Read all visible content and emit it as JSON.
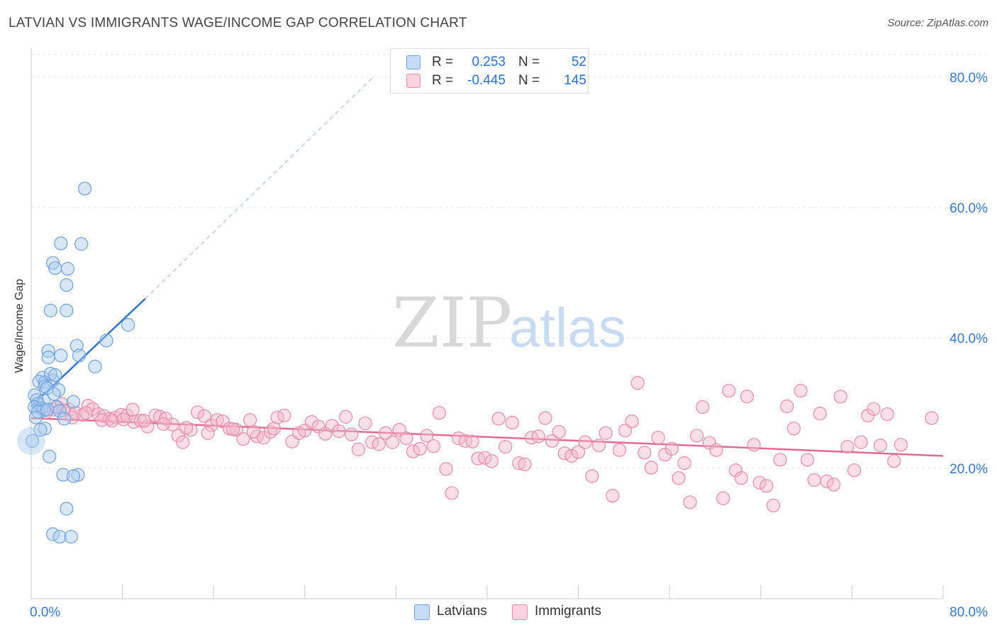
{
  "header": {
    "title": "LATVIAN VS IMMIGRANTS WAGE/INCOME GAP CORRELATION CHART",
    "source": "Source: ZipAtlas.com"
  },
  "watermark": {
    "zip": "ZIP",
    "atlas": "atlas"
  },
  "legend_top": {
    "rows": [
      {
        "r_label": "R =",
        "r_value": "0.253",
        "n_label": "N =",
        "n_value": "52",
        "color": "#a9c9f0"
      },
      {
        "r_label": "R =",
        "r_value": "-0.445",
        "n_label": "N =",
        "n_value": "145",
        "color": "#f5b8cb"
      }
    ]
  },
  "legend_bottom": {
    "items": [
      {
        "label": "Latvians",
        "color": "#a9c9f0"
      },
      {
        "label": "Immigrants",
        "color": "#f5b8cb"
      }
    ]
  },
  "chart_data": {
    "type": "scatter",
    "title": "LATVIAN VS IMMIGRANTS WAGE/INCOME GAP CORRELATION CHART",
    "xlabel": "",
    "ylabel": "Wage/Income Gap",
    "xlim": [
      0,
      80
    ],
    "ylim": [
      0,
      84
    ],
    "x_tick_labels": [
      "0.0%",
      "80.0%"
    ],
    "y_tick_values": [
      20,
      40,
      60,
      80
    ],
    "y_tick_labels": [
      "20.0%",
      "40.0%",
      "60.0%",
      "80.0%"
    ],
    "grid": true,
    "legend_position": "top-center",
    "colors": {
      "latvians_fill": "#a9c9f0",
      "latvians_stroke": "#6f9fdc",
      "latvians_line": "#2e75d4",
      "immigrants_fill": "#f5b8cb",
      "immigrants_stroke": "#e88aa8",
      "immigrants_line": "#e36a93",
      "axis_text": "#3a78c9"
    },
    "series": [
      {
        "name": "Latvians",
        "trend": {
          "x1": 0,
          "y1": 29.5,
          "x2": 10,
          "y2": 46,
          "dashed_to_x": 30,
          "dashed_to_y": 80
        },
        "points": [
          [
            4.7,
            62.9
          ],
          [
            2.6,
            54.5
          ],
          [
            4.4,
            54.4
          ],
          [
            1.9,
            51.5
          ],
          [
            2.1,
            50.7
          ],
          [
            3.2,
            50.6
          ],
          [
            3.1,
            48.1
          ],
          [
            1.7,
            44.2
          ],
          [
            3.1,
            44.2
          ],
          [
            8.5,
            42.0
          ],
          [
            6.6,
            39.6
          ],
          [
            4.0,
            38.8
          ],
          [
            1.5,
            38.0
          ],
          [
            1.5,
            37.0
          ],
          [
            2.6,
            37.3
          ],
          [
            4.2,
            37.3
          ],
          [
            5.6,
            35.6
          ],
          [
            1.0,
            33.9
          ],
          [
            0.7,
            33.3
          ],
          [
            1.2,
            33.2
          ],
          [
            1.9,
            33.5
          ],
          [
            1.7,
            34.5
          ],
          [
            2.1,
            34.3
          ],
          [
            1.2,
            32.6
          ],
          [
            1.4,
            32.3
          ],
          [
            2.4,
            32.0
          ],
          [
            0.3,
            31.2
          ],
          [
            0.5,
            30.5
          ],
          [
            1.1,
            30.4
          ],
          [
            0.6,
            29.9
          ],
          [
            0.3,
            29.4
          ],
          [
            0.9,
            29.2
          ],
          [
            1.1,
            28.9
          ],
          [
            0.6,
            28.7
          ],
          [
            2.2,
            29.4
          ],
          [
            3.7,
            30.2
          ],
          [
            2.5,
            28.8
          ],
          [
            2.9,
            27.6
          ],
          [
            1.2,
            26.1
          ],
          [
            0.8,
            25.9
          ],
          [
            0.1,
            24.2
          ],
          [
            1.6,
            21.8
          ],
          [
            2.8,
            19.0
          ],
          [
            4.1,
            19.0
          ],
          [
            3.7,
            18.8
          ],
          [
            3.1,
            13.8
          ],
          [
            1.9,
            9.9
          ],
          [
            2.5,
            9.5
          ],
          [
            3.5,
            9.5
          ],
          [
            0.4,
            27.8
          ],
          [
            1.4,
            29.0
          ],
          [
            2.0,
            31.4
          ]
        ]
      },
      {
        "name": "Immigrants",
        "trend": {
          "x1": 0,
          "y1": 27.7,
          "x2": 80,
          "y2": 21.9
        },
        "points": [
          [
            2.0,
            29.0
          ],
          [
            2.3,
            29.4
          ],
          [
            2.7,
            29.9
          ],
          [
            3.3,
            29.0
          ],
          [
            3.9,
            28.5
          ],
          [
            4.5,
            28.2
          ],
          [
            5.0,
            29.6
          ],
          [
            5.4,
            29.1
          ],
          [
            5.9,
            28.3
          ],
          [
            6.4,
            28.0
          ],
          [
            6.9,
            27.6
          ],
          [
            7.4,
            27.8
          ],
          [
            7.9,
            28.2
          ],
          [
            8.4,
            28.1
          ],
          [
            8.9,
            29.0
          ],
          [
            9.0,
            27.1
          ],
          [
            9.6,
            27.3
          ],
          [
            10.2,
            26.4
          ],
          [
            10.9,
            28.1
          ],
          [
            11.3,
            27.9
          ],
          [
            11.8,
            27.6
          ],
          [
            12.4,
            26.7
          ],
          [
            12.9,
            25.0
          ],
          [
            13.3,
            24.0
          ],
          [
            14.0,
            25.9
          ],
          [
            14.6,
            28.6
          ],
          [
            15.2,
            28.0
          ],
          [
            15.8,
            26.6
          ],
          [
            16.3,
            27.4
          ],
          [
            16.8,
            27.2
          ],
          [
            17.4,
            26.1
          ],
          [
            18.0,
            25.9
          ],
          [
            18.6,
            24.5
          ],
          [
            19.2,
            27.4
          ],
          [
            19.8,
            24.9
          ],
          [
            20.4,
            24.7
          ],
          [
            21.0,
            25.6
          ],
          [
            21.6,
            27.8
          ],
          [
            22.2,
            28.1
          ],
          [
            22.9,
            24.1
          ],
          [
            23.5,
            25.4
          ],
          [
            24.0,
            25.8
          ],
          [
            24.6,
            27.1
          ],
          [
            25.2,
            26.4
          ],
          [
            25.8,
            25.3
          ],
          [
            26.4,
            26.5
          ],
          [
            27.0,
            25.7
          ],
          [
            27.6,
            27.9
          ],
          [
            28.1,
            25.2
          ],
          [
            28.7,
            22.9
          ],
          [
            29.3,
            26.9
          ],
          [
            29.9,
            24.0
          ],
          [
            30.5,
            23.7
          ],
          [
            31.1,
            25.4
          ],
          [
            31.7,
            24.0
          ],
          [
            32.3,
            25.9
          ],
          [
            32.9,
            24.6
          ],
          [
            33.5,
            22.6
          ],
          [
            34.1,
            23.0
          ],
          [
            34.7,
            25.0
          ],
          [
            35.3,
            23.4
          ],
          [
            35.8,
            28.5
          ],
          [
            36.4,
            19.9
          ],
          [
            36.9,
            16.2
          ],
          [
            37.5,
            24.6
          ],
          [
            38.1,
            24.2
          ],
          [
            38.7,
            24.1
          ],
          [
            39.2,
            21.5
          ],
          [
            39.8,
            21.6
          ],
          [
            40.4,
            21.1
          ],
          [
            41.0,
            27.6
          ],
          [
            41.6,
            23.3
          ],
          [
            42.2,
            27.0
          ],
          [
            42.8,
            20.8
          ],
          [
            43.3,
            20.6
          ],
          [
            43.9,
            24.7
          ],
          [
            44.5,
            24.9
          ],
          [
            45.1,
            27.7
          ],
          [
            45.7,
            24.2
          ],
          [
            46.3,
            25.6
          ],
          [
            46.8,
            22.3
          ],
          [
            47.4,
            21.9
          ],
          [
            48.0,
            22.5
          ],
          [
            48.6,
            24.0
          ],
          [
            49.2,
            18.8
          ],
          [
            49.8,
            23.5
          ],
          [
            50.4,
            25.4
          ],
          [
            51.0,
            15.8
          ],
          [
            51.6,
            22.8
          ],
          [
            52.1,
            25.8
          ],
          [
            52.7,
            27.2
          ],
          [
            53.2,
            33.1
          ],
          [
            53.8,
            22.4
          ],
          [
            54.4,
            20.1
          ],
          [
            55.0,
            24.7
          ],
          [
            55.6,
            22.1
          ],
          [
            56.2,
            23.0
          ],
          [
            56.8,
            18.5
          ],
          [
            57.3,
            20.8
          ],
          [
            57.8,
            14.8
          ],
          [
            58.4,
            25.0
          ],
          [
            58.9,
            29.4
          ],
          [
            59.5,
            23.9
          ],
          [
            60.1,
            22.8
          ],
          [
            60.7,
            15.4
          ],
          [
            61.2,
            31.9
          ],
          [
            61.8,
            19.7
          ],
          [
            62.3,
            18.5
          ],
          [
            62.8,
            31.0
          ],
          [
            63.4,
            23.6
          ],
          [
            63.9,
            17.8
          ],
          [
            64.5,
            17.3
          ],
          [
            65.1,
            14.3
          ],
          [
            65.7,
            21.3
          ],
          [
            66.3,
            29.5
          ],
          [
            66.9,
            26.1
          ],
          [
            67.5,
            31.9
          ],
          [
            68.1,
            21.3
          ],
          [
            68.7,
            18.2
          ],
          [
            69.2,
            28.4
          ],
          [
            69.8,
            18.0
          ],
          [
            70.4,
            17.5
          ],
          [
            71.0,
            31.0
          ],
          [
            71.6,
            23.3
          ],
          [
            72.2,
            19.7
          ],
          [
            72.8,
            24.0
          ],
          [
            73.4,
            28.1
          ],
          [
            73.9,
            29.1
          ],
          [
            74.5,
            23.5
          ],
          [
            75.1,
            28.3
          ],
          [
            75.7,
            21.1
          ],
          [
            76.3,
            23.6
          ],
          [
            79.0,
            27.7
          ],
          [
            1.3,
            28.6
          ],
          [
            2.8,
            28.9
          ],
          [
            3.6,
            27.8
          ],
          [
            4.8,
            28.5
          ],
          [
            6.2,
            27.4
          ],
          [
            7.1,
            27.3
          ],
          [
            8.1,
            27.5
          ],
          [
            9.9,
            27.3
          ],
          [
            11.6,
            26.8
          ],
          [
            13.6,
            26.2
          ],
          [
            15.5,
            25.4
          ],
          [
            17.7,
            26.0
          ],
          [
            19.5,
            25.6
          ],
          [
            21.3,
            26.1
          ]
        ]
      }
    ]
  }
}
